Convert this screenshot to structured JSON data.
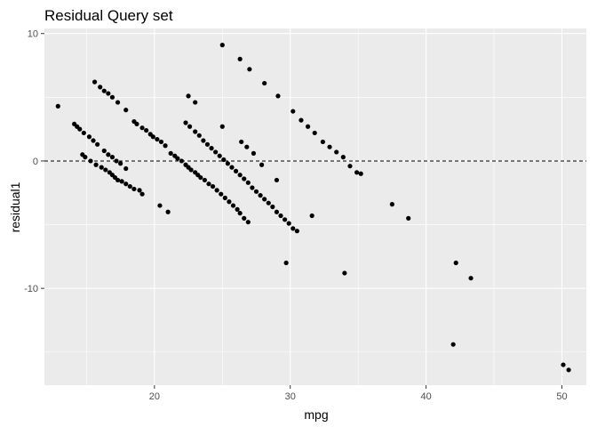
{
  "chart_data": {
    "type": "scatter",
    "title": "Residual Query set",
    "xlabel": "mpg",
    "ylabel": "residual1",
    "xlim": [
      11.9,
      51.8
    ],
    "ylim": [
      -17.6,
      10.4
    ],
    "x_ticks": [
      20,
      30,
      40,
      50
    ],
    "x_tick_labels": [
      "20",
      "30",
      "40",
      "50"
    ],
    "y_ticks": [
      -10,
      0,
      10
    ],
    "y_tick_labels": [
      "-10",
      "0",
      "10"
    ],
    "x_minor_ticks": [
      15,
      25,
      35,
      45
    ],
    "y_minor_ticks": [
      -15,
      -5,
      5
    ],
    "grid": true,
    "reference_line": {
      "y": 0,
      "style": "dashed"
    },
    "colors": {
      "panel": "#ebebeb",
      "grid": "#ffffff",
      "point": "#000000",
      "ref_line": "#000000"
    },
    "points": [
      [
        12.9,
        4.3
      ],
      [
        14.1,
        2.9
      ],
      [
        14.3,
        2.7
      ],
      [
        14.5,
        2.5
      ],
      [
        14.8,
        2.2
      ],
      [
        15.2,
        1.9
      ],
      [
        15.5,
        1.6
      ],
      [
        15.8,
        1.3
      ],
      [
        14.7,
        0.5
      ],
      [
        14.9,
        0.3
      ],
      [
        15.3,
        0.0
      ],
      [
        15.7,
        -0.3
      ],
      [
        16.1,
        -0.5
      ],
      [
        16.4,
        -0.7
      ],
      [
        16.7,
        -0.9
      ],
      [
        16.9,
        -1.1
      ],
      [
        17.1,
        -1.3
      ],
      [
        17.3,
        -1.5
      ],
      [
        17.6,
        -1.6
      ],
      [
        17.9,
        -1.8
      ],
      [
        18.2,
        -2.0
      ],
      [
        18.5,
        -2.2
      ],
      [
        18.9,
        -2.3
      ],
      [
        19.1,
        -2.6
      ],
      [
        15.6,
        6.2
      ],
      [
        16.0,
        5.8
      ],
      [
        16.3,
        5.5
      ],
      [
        16.6,
        5.3
      ],
      [
        16.9,
        5.0
      ],
      [
        17.3,
        4.6
      ],
      [
        17.9,
        4.0
      ],
      [
        18.5,
        3.1
      ],
      [
        18.7,
        2.9
      ],
      [
        19.1,
        2.6
      ],
      [
        19.4,
        2.4
      ],
      [
        19.7,
        2.1
      ],
      [
        19.9,
        1.9
      ],
      [
        20.2,
        1.7
      ],
      [
        20.5,
        1.5
      ],
      [
        20.8,
        1.2
      ],
      [
        16.3,
        0.8
      ],
      [
        16.6,
        0.5
      ],
      [
        16.9,
        0.3
      ],
      [
        17.2,
        0.0
      ],
      [
        17.5,
        -0.2
      ],
      [
        17.9,
        -0.6
      ],
      [
        20.4,
        -3.5
      ],
      [
        21.0,
        -4.0
      ],
      [
        21.2,
        0.6
      ],
      [
        21.5,
        0.4
      ],
      [
        21.7,
        0.2
      ],
      [
        22.0,
        0.0
      ],
      [
        22.3,
        -0.3
      ],
      [
        22.5,
        -0.5
      ],
      [
        22.7,
        -0.7
      ],
      [
        23.0,
        -0.9
      ],
      [
        23.2,
        -1.1
      ],
      [
        23.4,
        -1.3
      ],
      [
        23.7,
        -1.5
      ],
      [
        24.0,
        -1.8
      ],
      [
        24.3,
        -2.0
      ],
      [
        24.6,
        -2.3
      ],
      [
        24.9,
        -2.6
      ],
      [
        25.2,
        -2.9
      ],
      [
        25.5,
        -3.2
      ],
      [
        25.8,
        -3.5
      ],
      [
        26.1,
        -3.8
      ],
      [
        26.3,
        -4.1
      ],
      [
        26.6,
        -4.5
      ],
      [
        26.9,
        -4.8
      ],
      [
        22.3,
        3.0
      ],
      [
        22.6,
        2.7
      ],
      [
        23.0,
        2.3
      ],
      [
        23.3,
        2.0
      ],
      [
        23.6,
        1.6
      ],
      [
        23.9,
        1.3
      ],
      [
        24.2,
        1.0
      ],
      [
        24.5,
        0.7
      ],
      [
        24.8,
        0.4
      ],
      [
        25.1,
        0.1
      ],
      [
        25.4,
        -0.2
      ],
      [
        25.7,
        -0.5
      ],
      [
        26.0,
        -0.8
      ],
      [
        26.3,
        -1.1
      ],
      [
        26.6,
        -1.4
      ],
      [
        26.9,
        -1.7
      ],
      [
        27.2,
        -2.1
      ],
      [
        27.5,
        -2.4
      ],
      [
        27.8,
        -2.7
      ],
      [
        28.1,
        -3.0
      ],
      [
        28.4,
        -3.3
      ],
      [
        28.7,
        -3.6
      ],
      [
        29.0,
        -4.0
      ],
      [
        29.3,
        -4.3
      ],
      [
        29.6,
        -4.6
      ],
      [
        29.9,
        -4.9
      ],
      [
        30.2,
        -5.3
      ],
      [
        30.5,
        -5.5
      ],
      [
        22.5,
        5.1
      ],
      [
        23.0,
        4.6
      ],
      [
        25.0,
        2.7
      ],
      [
        26.4,
        1.5
      ],
      [
        26.8,
        1.1
      ],
      [
        27.3,
        0.6
      ],
      [
        27.9,
        -0.3
      ],
      [
        29.0,
        -1.5
      ],
      [
        29.7,
        -8.0
      ],
      [
        31.6,
        -4.3
      ],
      [
        34.0,
        -8.8
      ],
      [
        25.0,
        9.1
      ],
      [
        26.3,
        8.0
      ],
      [
        27.0,
        7.2
      ],
      [
        28.1,
        6.1
      ],
      [
        29.1,
        5.1
      ],
      [
        30.2,
        3.9
      ],
      [
        30.8,
        3.2
      ],
      [
        31.3,
        2.7
      ],
      [
        31.8,
        2.2
      ],
      [
        32.4,
        1.5
      ],
      [
        32.9,
        1.1
      ],
      [
        33.4,
        0.7
      ],
      [
        33.9,
        0.3
      ],
      [
        34.4,
        -0.4
      ],
      [
        34.9,
        -0.9
      ],
      [
        35.2,
        -1.0
      ],
      [
        37.5,
        -3.4
      ],
      [
        38.7,
        -4.5
      ],
      [
        42.0,
        -14.4
      ],
      [
        42.2,
        -8.0
      ],
      [
        43.3,
        -9.2
      ],
      [
        50.1,
        -16.0
      ],
      [
        50.5,
        -16.4
      ]
    ]
  }
}
